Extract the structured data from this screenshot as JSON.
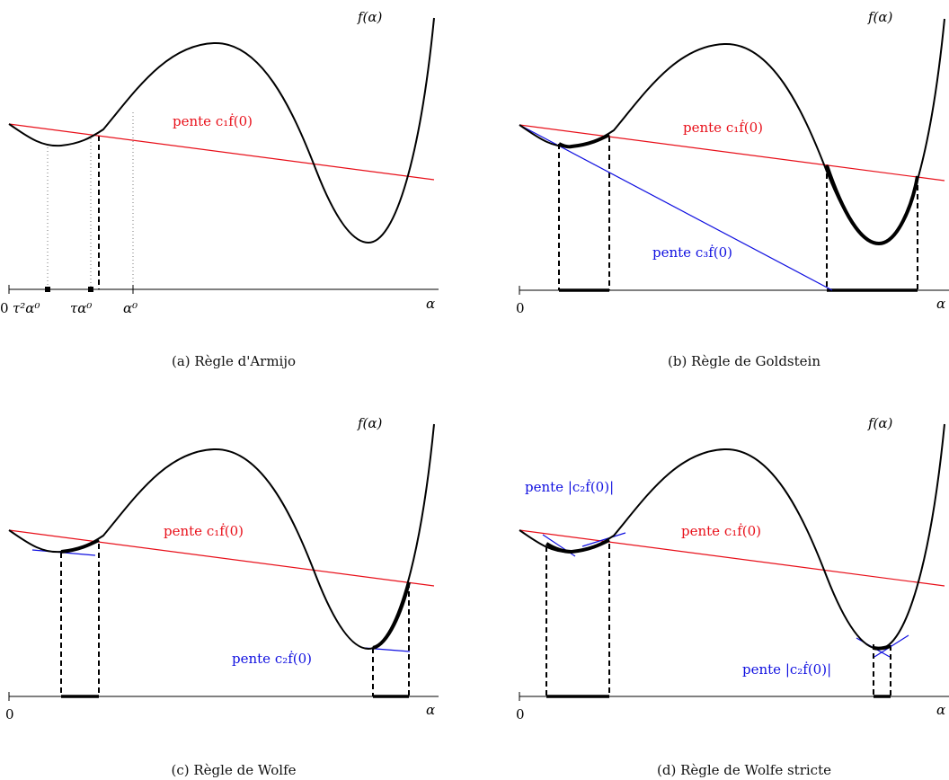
{
  "panels": [
    {
      "id": "a",
      "caption": "(a) Règle d'Armijo",
      "fn_label": "f(α)",
      "x_label": "α",
      "origin_label": "0",
      "c1_label": "pente c₁ḟ(0)",
      "tick_labels": [
        "τ²α⁰",
        "τα⁰",
        "α⁰"
      ]
    },
    {
      "id": "b",
      "caption": "(b) Règle de Goldstein",
      "fn_label": "f(α)",
      "x_label": "α",
      "origin_label": "0",
      "c1_label": "pente c₁ḟ(0)",
      "c3_label": "pente c₃ḟ(0)"
    },
    {
      "id": "c",
      "caption": "(c) Règle de Wolfe",
      "fn_label": "f(α)",
      "x_label": "α",
      "origin_label": "0",
      "c1_label": "pente c₁ḟ(0)",
      "c2_label": "pente c₂ḟ(0)"
    },
    {
      "id": "d",
      "caption": "(d) Règle de Wolfe stricte",
      "fn_label": "f(α)",
      "x_label": "α",
      "origin_label": "0",
      "c1_label": "pente c₁ḟ(0)",
      "c2_label_top": "pente |c₂ḟ(0)|",
      "c2_label_bottom": "pente |c₂ḟ(0)|"
    }
  ],
  "colors": {
    "curve": "#000000",
    "armijo_line": "#e8101a",
    "tangent": "#1010e0"
  }
}
